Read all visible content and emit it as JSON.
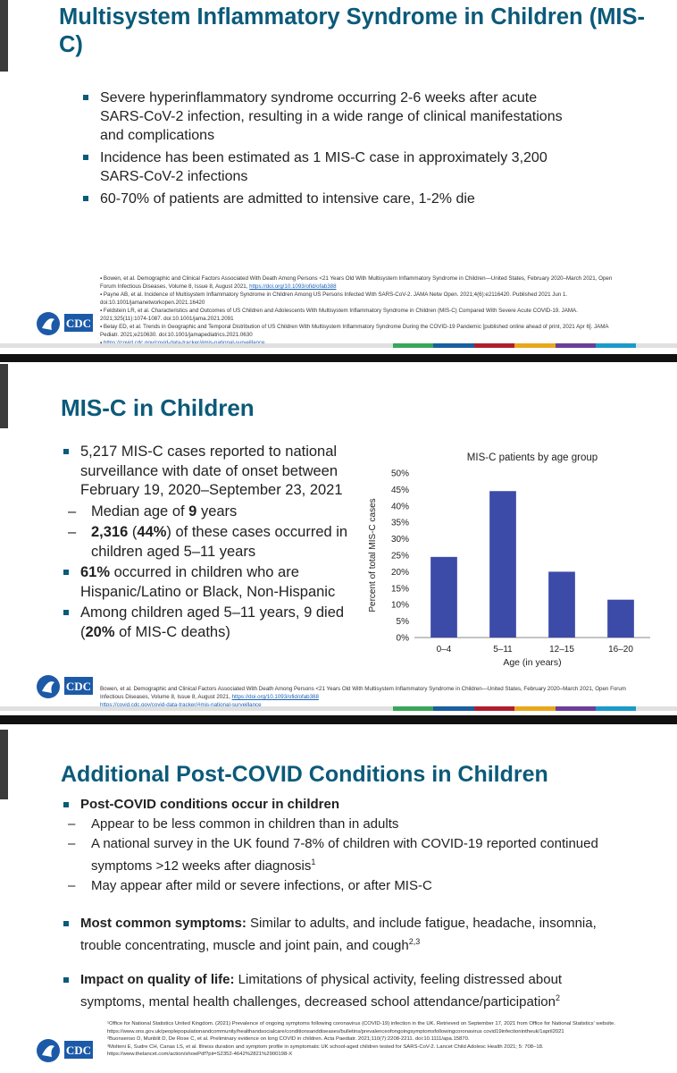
{
  "slide1": {
    "title": "Multisystem Inflammatory Syndrome in Children (MIS-C)",
    "bullets": [
      "Severe hyperinflammatory syndrome occurring 2-6 weeks after acute SARS-CoV-2 infection, resulting in a wide range of clinical manifestations and complications",
      "Incidence has been estimated as 1 MIS-C case in approximately 3,200 SARS-CoV-2 infections",
      "60-70% of patients are admitted to intensive care, 1-2% die"
    ],
    "refs": [
      "Bowen, et al. Demographic and Clinical Factors Associated With Death Among Persons <21 Years Old With Multisystem Inflammatory Syndrome in Children—United States, February 2020–March 2021, Open Forum Infectious Diseases, Volume 8, Issue 8, August 2021,",
      "https://doi.org/10.1093/ofid/ofab388",
      "Payne AB, et al. Incidence of Multisystem Inflammatory Syndrome in Children Among US Persons Infected With SARS-CoV-2. JAMA Netw Open. 2021;4(6):e2116420. Published 2021 Jun 1. doi:10.1001/jamanetworkopen.2021.16420",
      "Feldstein LR, et al. Characteristics and Outcomes of US Children and Adolescents With Multisystem Inflammatory Syndrome in Children (MIS-C) Compared With Severe Acute COVID-19. JAMA. 2021;325(11):1074-1087. doi:10.1001/jama.2021.2091",
      "Belay ED, et al. Trends in Geographic and Temporal Distribution of US Children With Multisystem Inflammatory Syndrome During the COVID-19 Pandemic [published online ahead of print, 2021 Apr 6]. JAMA Pediatr. 2021;e210630. doi:10.1001/jamapediatrics.2021.0630",
      "https://covid.cdc.gov/covid-data-tracker/#mis-national-surveillance"
    ]
  },
  "slide2": {
    "title": "MIS-C in Children",
    "bullet1": "5,217 MIS-C cases reported to national surveillance with date of onset between February 19, 2020–September 23, 2021",
    "sub1_pre": "Median age of ",
    "sub1_bold": "9",
    "sub1_post": " years",
    "sub2_bold1": "2,316",
    "sub2_mid": " (",
    "sub2_bold2": "44%",
    "sub2_post": ") of these cases occurred in children aged 5–11 years",
    "bullet2_bold": "61%",
    "bullet2_post": " occurred in children who are Hispanic/Latino or Black, Non-Hispanic",
    "bullet3_pre": "Among children aged 5–11 years, 9 died (",
    "bullet3_bold": "20%",
    "bullet3_post": " of MIS-C deaths)",
    "refs": [
      "Bowen, et al. Demographic and Clinical Factors Associated With Death Among Persons <21 Years Old With Multisystem Inflammatory Syndrome in Children—United States, February 2020–March 2021, Open Forum Infectious Diseases, Volume 8, Issue 8, August 2021,",
      "https://doi.org/10.1093/ofid/ofab388",
      "https://covid.cdc.gov/covid-data-tracker/#mis-national-surveillance"
    ]
  },
  "chart_data": {
    "type": "bar",
    "title": "MIS-C patients by age group",
    "xlabel": "Age (in years)",
    "ylabel": "Percent of total MIS-C cases",
    "categories": [
      "0–4",
      "5–11",
      "12–15",
      "16–20"
    ],
    "values": [
      24.5,
      44.5,
      20,
      11.5
    ],
    "ylim": [
      0,
      50
    ],
    "yticks": [
      "0%",
      "5%",
      "10%",
      "15%",
      "20%",
      "25%",
      "30%",
      "35%",
      "40%",
      "45%",
      "50%"
    ],
    "bar_color": "#3c4aa8",
    "grid": false
  },
  "slide3": {
    "title": "Additional Post-COVID Conditions in Children",
    "bullet1": "Post-COVID conditions occur in children",
    "subs": [
      "Appear to be less common in children than in adults",
      "A national survey in the UK found 7-8% of children with COVID-19 reported continued symptoms >12 weeks after diagnosis",
      "May appear after mild or severe infections, or after MIS-C"
    ],
    "sub2_sup": "1",
    "bullet2_bold": "Most common symptoms:",
    "bullet2_text": " Similar to adults, and include fatigue, headache, insomnia, trouble concentrating, muscle and joint pain, and cough",
    "bullet2_sup": "2,3",
    "bullet3_bold": "Impact on quality of life:",
    "bullet3_text": " Limitations of physical activity, feeling distressed about symptoms, mental health challenges, decreased school attendance/participation",
    "bullet3_sup": "2",
    "refs": [
      "¹Office for National Statistics United Kingdom. (2021) Prevalence of ongoing symptoms following coronavirus (COVID-19) infection in the UK. Retrieved on September 17, 2021 from Office for National Statistics' website. https://www.ons.gov.uk/peoplepopulationandcommunity/healthandsocialcare/conditionsanddiseases/bulletins/prevalenceofongoingsymptomsfollowingcoronavirus covid19infectionintheuk/1april2021",
      "²Buonsenso D, Munblit D, De Rose C, et al. Preliminary evidence on long COVID in children. Acta Paediatr. 2021;110(7):2208-2211. doi:10.1111/apa.15870.",
      "³Molteni E, Sudre CH, Canas LS, et al. Illness duration and symptom profile in symptomatic UK school-aged children tested for SARS-CoV-2. Lancet Child Adolesc Health 2021; 5: 708–18. https://www.thelancet.com/action/showPdf?pii=S2352-4642%2821%2900198-X"
    ]
  },
  "logo": {
    "text": "CDC"
  },
  "strip_colors": [
    "#e0e0e0",
    "#3aa65b",
    "#1a5fa0",
    "#b01e2d",
    "#e7a81e",
    "#6b3f98",
    "#1a9bc9",
    "#e0e0e0"
  ]
}
